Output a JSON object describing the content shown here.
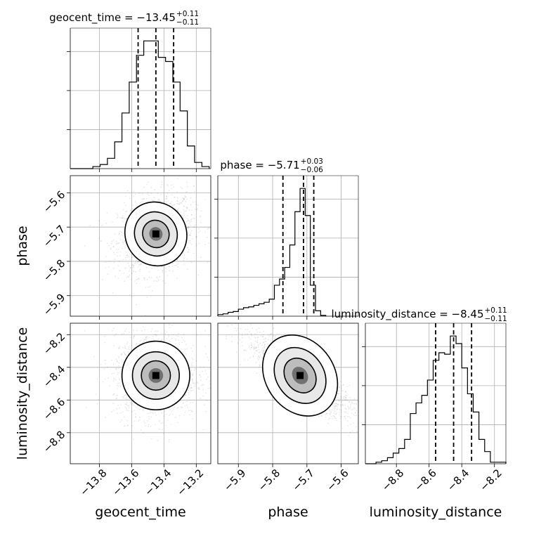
{
  "chart_data": {
    "type": "corner",
    "parameters": [
      "geocent_time",
      "phase",
      "luminosity_distance"
    ],
    "titles": [
      {
        "param": "geocent_time",
        "label": "geocent_time",
        "median": "−13.45",
        "plus": "+0.11",
        "minus": "−0.11"
      },
      {
        "param": "phase",
        "label": "phase",
        "median": "−5.71",
        "plus": "+0.03",
        "minus": "−0.06"
      },
      {
        "param": "luminosity_distance",
        "label": "luminosity_distance",
        "median": "−8.45",
        "plus": "+0.11",
        "minus": "−0.11"
      }
    ],
    "ranges": {
      "geocent_time": [
        -13.98,
        -13.11
      ],
      "phase": [
        -5.96,
        -5.55
      ],
      "luminosity_distance": [
        -8.99,
        -8.13
      ]
    },
    "ticks": {
      "geocent_time": [
        -13.8,
        -13.6,
        -13.4,
        -13.2
      ],
      "phase": [
        -5.9,
        -5.8,
        -5.7,
        -5.6
      ],
      "luminosity_distance": [
        -8.8,
        -8.6,
        -8.4,
        -8.2
      ]
    },
    "tick_labels": {
      "geocent_time": [
        "−13.8",
        "−13.6",
        "−13.4",
        "−13.2"
      ],
      "phase": [
        "−5.9",
        "−5.8",
        "−5.7",
        "−5.6"
      ],
      "luminosity_distance": [
        "−8.8",
        "−8.6",
        "−8.4",
        "−8.2"
      ]
    },
    "quantiles": {
      "geocent_time": [
        -13.56,
        -13.45,
        -13.34
      ],
      "phase": [
        -5.77,
        -5.71,
        -5.68
      ],
      "luminosity_distance": [
        -8.56,
        -8.45,
        -8.34
      ]
    },
    "histograms": {
      "geocent_time": {
        "edges": [
          -13.98,
          -13.93,
          -13.885,
          -13.84,
          -13.795,
          -13.75,
          -13.705,
          -13.66,
          -13.615,
          -13.57,
          -13.525,
          -13.48,
          -13.435,
          -13.39,
          -13.345,
          -13.3,
          -13.255,
          -13.21,
          -13.165,
          -13.12
        ],
        "counts": [
          0,
          0,
          0,
          1,
          2,
          5,
          13,
          27,
          42,
          55,
          62,
          62,
          54,
          52,
          42,
          28,
          11,
          3,
          1
        ]
      },
      "phase": {
        "edges": [
          -5.96,
          -5.945,
          -5.93,
          -5.915,
          -5.9,
          -5.885,
          -5.87,
          -5.855,
          -5.84,
          -5.825,
          -5.81,
          -5.795,
          -5.78,
          -5.765,
          -5.75,
          -5.735,
          -5.72,
          -5.705,
          -5.69,
          -5.675,
          -5.66,
          -5.645
        ],
        "counts": [
          2,
          3,
          5,
          6,
          9,
          11,
          12,
          14,
          16,
          18,
          22,
          40,
          48,
          63,
          92,
          135,
          165,
          130,
          40,
          7,
          1
        ]
      },
      "luminosity_distance": {
        "edges": [
          -8.99,
          -8.925,
          -8.89,
          -8.855,
          -8.82,
          -8.785,
          -8.75,
          -8.715,
          -8.68,
          -8.645,
          -8.61,
          -8.575,
          -8.54,
          -8.505,
          -8.47,
          -8.435,
          -8.4,
          -8.365,
          -8.33,
          -8.295,
          -8.26,
          -8.225,
          -8.19,
          -8.155,
          -8.13
        ],
        "counts": [
          0,
          1,
          2,
          4,
          7,
          10,
          16,
          33,
          40,
          45,
          55,
          68,
          73,
          72,
          84,
          79,
          63,
          46,
          34,
          16,
          8,
          1,
          1,
          1
        ]
      }
    },
    "grid": true,
    "color": "#000000"
  }
}
